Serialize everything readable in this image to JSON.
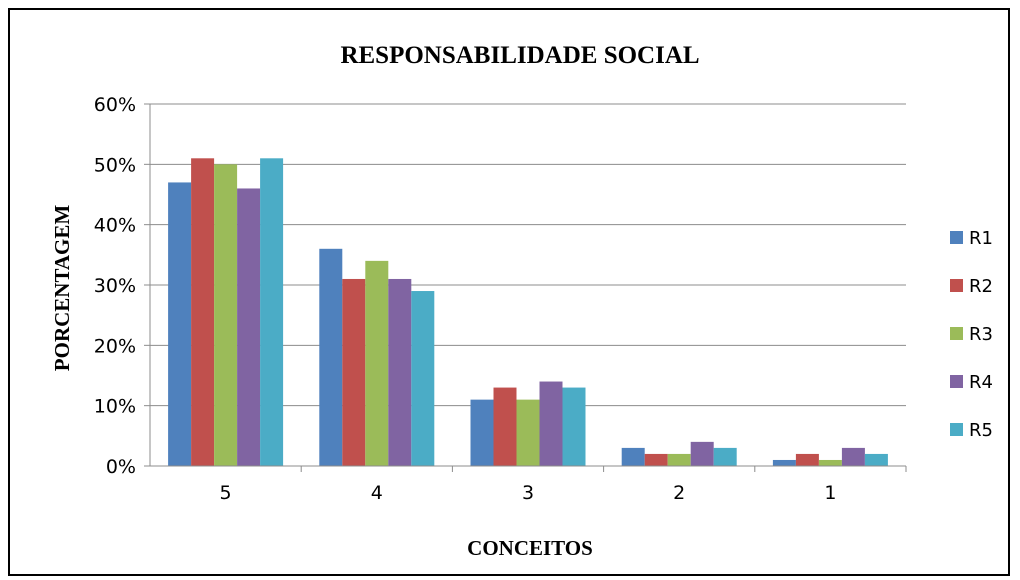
{
  "chart_data": {
    "type": "bar",
    "title": "RESPONSABILIDADE SOCIAL",
    "xlabel": "CONCEITOS",
    "ylabel": "PORCENTAGEM",
    "categories": [
      "5",
      "4",
      "3",
      "2",
      "1"
    ],
    "ylim": [
      0,
      60
    ],
    "yticks": [
      "0%",
      "10%",
      "20%",
      "30%",
      "40%",
      "50%",
      "60%"
    ],
    "ytick_values": [
      0,
      10,
      20,
      30,
      40,
      50,
      60
    ],
    "grid": true,
    "legend_position": "right",
    "series": [
      {
        "name": "R1",
        "color": "#4F81BD",
        "values": [
          47,
          36,
          11,
          3,
          1
        ]
      },
      {
        "name": "R2",
        "color": "#C0504D",
        "values": [
          51,
          31,
          13,
          2,
          2
        ]
      },
      {
        "name": "R3",
        "color": "#9BBB59",
        "values": [
          50,
          34,
          11,
          2,
          1
        ]
      },
      {
        "name": "R4",
        "color": "#8064A2",
        "values": [
          46,
          31,
          14,
          4,
          3
        ]
      },
      {
        "name": "R5",
        "color": "#4BACC6",
        "values": [
          51,
          29,
          13,
          3,
          2
        ]
      }
    ]
  }
}
